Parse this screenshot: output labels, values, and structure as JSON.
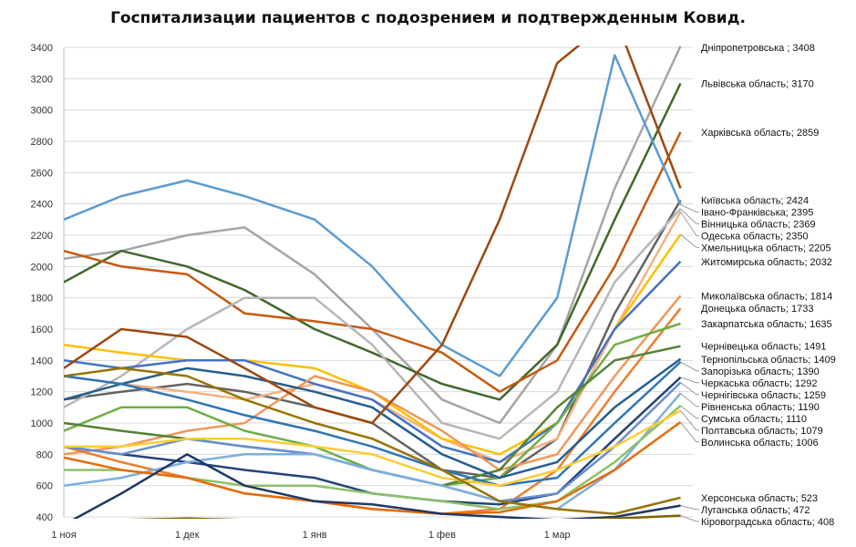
{
  "chart_data": {
    "type": "line",
    "title": "Госпитализации пациентов с подозрением и подтвержденным Ковид.",
    "xlabel": "",
    "ylabel": "",
    "ylim": [
      400,
      3400
    ],
    "yticks": [
      400,
      600,
      800,
      1000,
      1200,
      1400,
      1600,
      1800,
      2000,
      2200,
      2400,
      2600,
      2800,
      3000,
      3200,
      3400
    ],
    "xticks": [
      "1 ноя",
      "1 дек",
      "1 янв",
      "1 фев",
      "1 мар"
    ],
    "grid": true,
    "legend": "data labels at line ends (right)",
    "x": [
      "01.11",
      "15.11",
      "01.12",
      "15.12",
      "01.01",
      "15.01",
      "01.02",
      "15.02",
      "01.03",
      "15.03",
      "31.03"
    ],
    "series": [
      {
        "name": "Дніпропетровська ",
        "label": "Дніпропетровська ; 3408",
        "color": "#A5A5A5",
        "values": [
          2050,
          2100,
          2200,
          2250,
          1950,
          1600,
          1150,
          1000,
          1500,
          2500,
          3408
        ]
      },
      {
        "name": "Львівська область",
        "label": "Львівська область; 3170",
        "color": "#43682B",
        "values": [
          1900,
          2100,
          2000,
          1850,
          1600,
          1450,
          1250,
          1150,
          1500,
          2300,
          3170
        ]
      },
      {
        "name": "Харківська область",
        "label": "Харківська область; 2859",
        "color": "#C55A11",
        "values": [
          2100,
          2000,
          1950,
          1700,
          1650,
          1600,
          1450,
          1200,
          1400,
          2000,
          2859
        ]
      },
      {
        "name": "Київська область",
        "label": "Київська область; 2424",
        "color": "#636363",
        "values": [
          1150,
          1200,
          1250,
          1200,
          1100,
          1000,
          700,
          650,
          900,
          1700,
          2424
        ]
      },
      {
        "name": "Івано-Франківська",
        "label": "Івано-Франківська; 2395",
        "color": "#5B9BD5",
        "values": [
          2300,
          2450,
          2550,
          2450,
          2300,
          2000,
          1500,
          1300,
          1800,
          3350,
          2395
        ]
      },
      {
        "name": "Вінницька область",
        "label": "Вінницька область; 2369",
        "color": "#B7B7B7",
        "values": [
          1100,
          1300,
          1600,
          1800,
          1800,
          1500,
          1000,
          900,
          1200,
          1900,
          2369
        ]
      },
      {
        "name": "Одеська область",
        "label": "Одеська область; 2350",
        "color": "#F4B183",
        "values": [
          1300,
          1250,
          1200,
          1150,
          1250,
          1150,
          900,
          750,
          900,
          1600,
          2350
        ]
      },
      {
        "name": "Хмельницька область",
        "label": "Хмельницька область; 2205",
        "color": "#FFC000",
        "values": [
          1500,
          1450,
          1400,
          1400,
          1350,
          1200,
          900,
          800,
          1000,
          1600,
          2205
        ]
      },
      {
        "name": "Житомирська область",
        "label": "Житомирська область; 2032",
        "color": "#4472C4",
        "values": [
          1400,
          1350,
          1400,
          1400,
          1250,
          1150,
          850,
          750,
          1000,
          1600,
          2032
        ]
      },
      {
        "name": "Миколаївська область",
        "label": "Миколаївська область; 1814",
        "color": "#F1975A",
        "values": [
          800,
          850,
          950,
          1000,
          1300,
          1200,
          950,
          700,
          800,
          1300,
          1814
        ]
      },
      {
        "name": "Донецька область",
        "label": "Донецька область; 1733",
        "color": "#ED7D31",
        "values": [
          850,
          750,
          650,
          550,
          500,
          450,
          420,
          450,
          700,
          1200,
          1733
        ]
      },
      {
        "name": "Закарпатська область",
        "label": "Закарпатська область; 1635",
        "color": "#70AD47",
        "values": [
          950,
          1100,
          1100,
          950,
          850,
          700,
          600,
          650,
          1000,
          1500,
          1635
        ]
      },
      {
        "name": "Чернівецька область",
        "label": "Чернівецька область; 1491",
        "color": "#548235",
        "values": [
          1000,
          950,
          900,
          850,
          800,
          700,
          600,
          700,
          1100,
          1400,
          1491
        ]
      },
      {
        "name": "Тернопільська область",
        "label": "Тернопільська область; 1409",
        "color": "#255E91",
        "values": [
          1150,
          1250,
          1350,
          1300,
          1200,
          1100,
          800,
          650,
          750,
          1100,
          1409
        ]
      },
      {
        "name": "Запорізька область",
        "label": "Запорізька область; 1390",
        "color": "#2E75B6",
        "values": [
          1300,
          1250,
          1150,
          1050,
          950,
          850,
          700,
          600,
          650,
          1000,
          1390
        ]
      },
      {
        "name": "Черкаська область",
        "label": "Черкаська область; 1292",
        "color": "#264478",
        "values": [
          850,
          800,
          750,
          700,
          650,
          550,
          500,
          480,
          550,
          900,
          1292
        ]
      },
      {
        "name": "Чернігівська область",
        "label": "Чернігівська область; 1259",
        "color": "#698ED0",
        "values": [
          850,
          800,
          900,
          850,
          800,
          700,
          600,
          500,
          550,
          850,
          1259
        ]
      },
      {
        "name": "Рівненська область",
        "label": "Рівненська область; 1190",
        "color": "#7CAFDD",
        "values": [
          600,
          650,
          750,
          800,
          800,
          700,
          600,
          500,
          450,
          700,
          1190
        ]
      },
      {
        "name": "Сумська область",
        "label": "Сумська область; 1110",
        "color": "#8CC168",
        "values": [
          700,
          700,
          650,
          600,
          600,
          550,
          500,
          450,
          500,
          750,
          1110
        ]
      },
      {
        "name": "Полтавська область",
        "label": "Полтавська область; 1079",
        "color": "#FFCD33",
        "values": [
          850,
          850,
          900,
          900,
          850,
          800,
          650,
          600,
          700,
          850,
          1079
        ]
      },
      {
        "name": "Волинська область",
        "label": "Волинська область; 1006",
        "color": "#E46C0A",
        "values": [
          780,
          700,
          650,
          550,
          500,
          450,
          420,
          430,
          500,
          700,
          1006
        ]
      },
      {
        "name": "Херсонська область",
        "label": "Херсонська область; 523",
        "color": "#997300",
        "values": [
          1300,
          1350,
          1300,
          1150,
          1000,
          900,
          700,
          500,
          450,
          420,
          523
        ]
      },
      {
        "name": "Луганська область",
        "label": "Луганська область; 472",
        "color": "#1F3864",
        "values": [
          350,
          550,
          800,
          600,
          500,
          480,
          420,
          400,
          380,
          400,
          472
        ]
      },
      {
        "name": "Кіровоградська область",
        "label": "Кіровоградська область; 408",
        "color": "#7F6000",
        "values": [
          380,
          380,
          390,
          380,
          380,
          370,
          360,
          360,
          370,
          390,
          408
        ]
      },
      {
        "label": "",
        "color": "#9E480E",
        "values": [
          1350,
          1600,
          1550,
          1350,
          1100,
          1000,
          1500,
          2300,
          3300,
          3600,
          2500
        ]
      }
    ]
  }
}
